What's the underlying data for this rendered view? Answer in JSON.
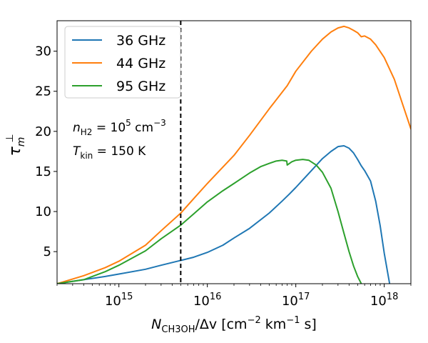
{
  "chart_data": {
    "type": "line",
    "xscale": "log",
    "xlim": [
      200000000000000.0,
      2e+18
    ],
    "ylim": [
      1,
      33.8
    ],
    "xlabel_main": "N",
    "xlabel_sub": "CH3OH",
    "xlabel_rest": "/Δv [cm",
    "xlabel_exp1": "−2",
    "xlabel_mid": " km",
    "xlabel_exp2": "−1",
    "xlabel_end": " s]",
    "ylabel_main": "τ",
    "ylabel_sup": "⊥",
    "ylabel_sub": "m",
    "x_ticks": [
      {
        "value": 1000000000000000.0,
        "base": "10",
        "exp": "15"
      },
      {
        "value": 1e+16,
        "base": "10",
        "exp": "16"
      },
      {
        "value": 1e+17,
        "base": "10",
        "exp": "17"
      },
      {
        "value": 1e+18,
        "base": "10",
        "exp": "18"
      }
    ],
    "y_ticks": [
      5,
      10,
      15,
      20,
      25,
      30
    ],
    "legend_position": "top-left",
    "vline": {
      "x": 5000000000000000.0,
      "style": "dashed",
      "color": "#000000"
    },
    "annotations": [
      {
        "id": "density",
        "main": "n",
        "sub": "H2",
        "rest": " = 10",
        "sup": "5",
        "tail": " cm",
        "sup2": "−3"
      },
      {
        "id": "temperature",
        "main": "T",
        "sub": "kin",
        "rest": " = 150 K"
      }
    ],
    "series": [
      {
        "name": "36 GHz",
        "color": "#1f77b4",
        "x": [
          200000000000000.0,
          400000000000000.0,
          700000000000000.0,
          1000000000000000.0,
          2000000000000000.0,
          3000000000000000.0,
          5000000000000000.0,
          7000000000000000.0,
          1e+16,
          1.5e+16,
          2e+16,
          3e+16,
          5e+16,
          7e+16,
          8.5e+16,
          1e+17,
          1.5e+17,
          2e+17,
          2.5e+17,
          3e+17,
          3.5e+17,
          4e+17,
          4.5e+17,
          5e+17,
          5.5e+17,
          6e+17,
          7e+17,
          8e+17,
          9e+17,
          1e+18,
          1.1e+18,
          1.15e+18
        ],
        "y": [
          1.0,
          1.5,
          1.9,
          2.2,
          2.8,
          3.3,
          3.9,
          4.3,
          4.9,
          5.8,
          6.7,
          7.9,
          9.8,
          11.3,
          12.2,
          13.0,
          15.1,
          16.6,
          17.5,
          18.1,
          18.2,
          17.9,
          17.3,
          16.5,
          15.7,
          15.1,
          13.8,
          11.3,
          8.2,
          4.8,
          2.2,
          1.0
        ]
      },
      {
        "name": "44 GHz",
        "color": "#ff7f0e",
        "x": [
          200000000000000.0,
          400000000000000.0,
          700000000000000.0,
          1000000000000000.0,
          2000000000000000.0,
          3000000000000000.0,
          5000000000000000.0,
          7000000000000000.0,
          1e+16,
          2e+16,
          3e+16,
          5e+16,
          8e+16,
          1e+17,
          1.5e+17,
          2e+17,
          2.5e+17,
          3e+17,
          3.5e+17,
          4e+17,
          4.5e+17,
          5e+17,
          5.5e+17,
          6e+17,
          7e+17,
          8e+17,
          1e+18,
          1.3e+18,
          1.6e+18,
          2e+18
        ],
        "y": [
          1.0,
          2.0,
          3.0,
          3.8,
          5.8,
          7.6,
          9.8,
          11.6,
          13.5,
          17.0,
          19.5,
          22.8,
          25.7,
          27.5,
          30.0,
          31.5,
          32.4,
          32.9,
          33.1,
          32.9,
          32.6,
          32.3,
          31.8,
          31.9,
          31.5,
          30.8,
          29.2,
          26.5,
          23.5,
          20.3
        ]
      },
      {
        "name": "95 GHz",
        "color": "#2ca02c",
        "x": [
          200000000000000.0,
          400000000000000.0,
          700000000000000.0,
          1000000000000000.0,
          2000000000000000.0,
          3000000000000000.0,
          5000000000000000.0,
          7000000000000000.0,
          1e+16,
          1.5e+16,
          2e+16,
          3e+16,
          4e+16,
          5e+16,
          6e+16,
          7e+16,
          7.9e+16,
          8e+16,
          9e+16,
          1e+17,
          1.2e+17,
          1.4e+17,
          1.7e+17,
          2e+17,
          2.5e+17,
          3e+17,
          3.5e+17,
          4e+17,
          4.5e+17,
          5e+17,
          5.5e+17
        ],
        "y": [
          1.0,
          1.5,
          2.5,
          3.3,
          5.1,
          6.6,
          8.3,
          9.7,
          11.2,
          12.6,
          13.5,
          14.8,
          15.6,
          16.0,
          16.3,
          16.4,
          16.3,
          15.8,
          16.2,
          16.4,
          16.5,
          16.4,
          15.8,
          14.9,
          12.9,
          10.0,
          7.3,
          5.0,
          3.2,
          1.9,
          1.0
        ]
      }
    ]
  }
}
